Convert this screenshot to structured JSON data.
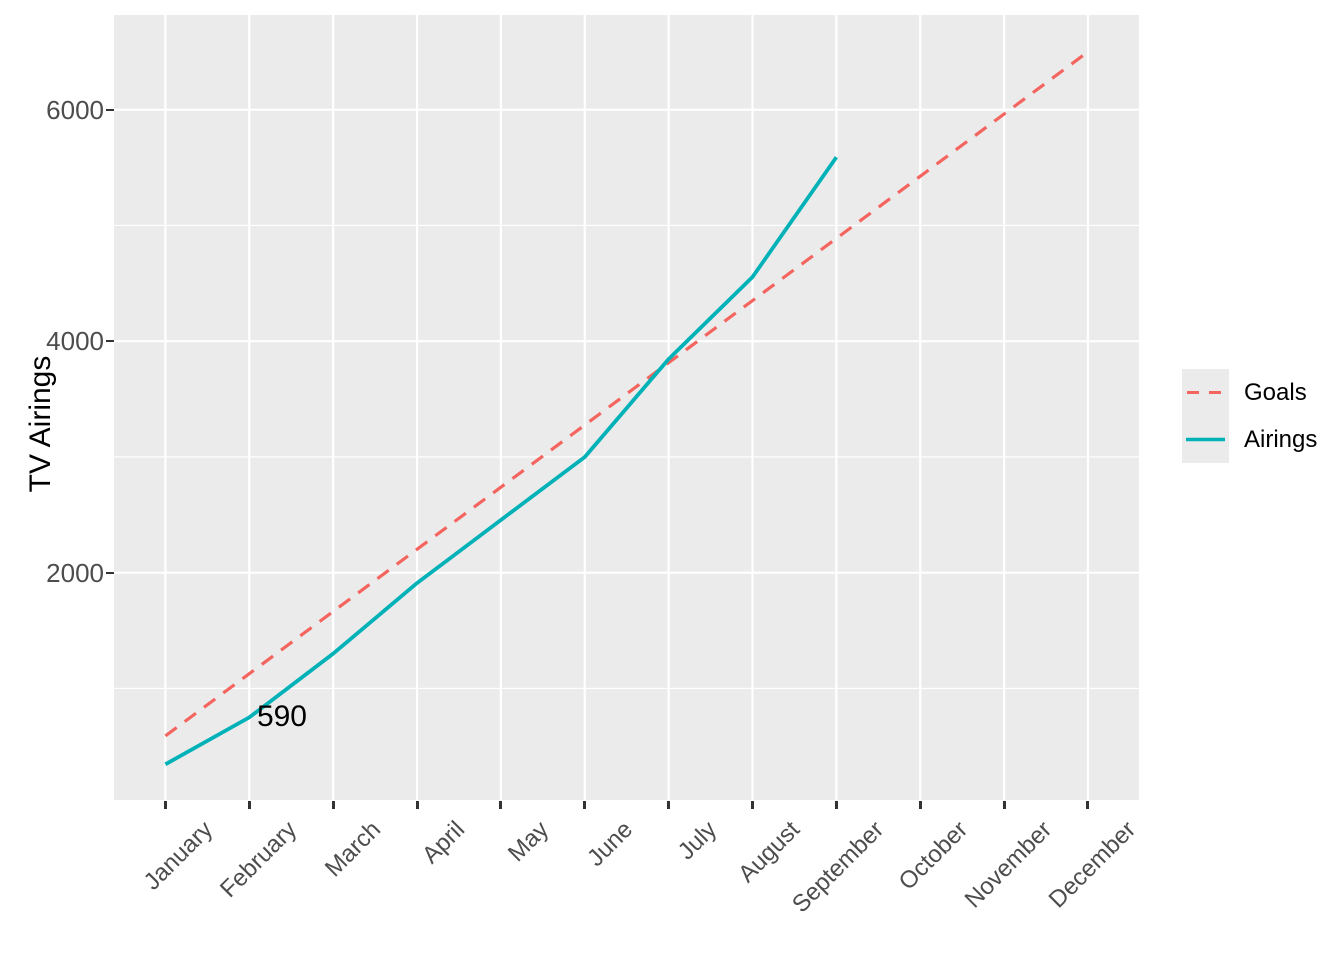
{
  "figure": {
    "background": "#FFFFFF",
    "panel_background": "#EBEBEB",
    "gridline_color": "#FFFFFF",
    "axis_text_color": "#4D4D4D",
    "tick_mark_color": "#333333",
    "title_text_color": "#000000"
  },
  "y_axis": {
    "title": "TV Airings",
    "tick_labels": [
      "2000",
      "4000",
      "6000"
    ],
    "tick_values": [
      2000,
      4000,
      6000
    ],
    "minor_gridline_values": [
      1000,
      3000,
      5000
    ]
  },
  "x_axis": {
    "tick_labels": [
      "January",
      "February",
      "March",
      "April",
      "May",
      "June",
      "July",
      "August",
      "September",
      "October",
      "November",
      "December"
    ]
  },
  "legend": {
    "items": [
      {
        "label": "Goals",
        "line_style": "dashed",
        "color": "#F4655F"
      },
      {
        "label": "Airings",
        "line_style": "solid",
        "color": "#00B2B8"
      }
    ]
  },
  "chart_data": {
    "type": "line",
    "title": "",
    "xlabel": "",
    "ylabel": "TV Airings",
    "categories": [
      "January",
      "February",
      "March",
      "April",
      "May",
      "June",
      "July",
      "August",
      "September",
      "October",
      "November",
      "December"
    ],
    "series": [
      {
        "name": "Goals",
        "style": "dashed",
        "color": "#F4655F",
        "values": [
          590,
          1127,
          1665,
          2202,
          2739,
          3276,
          3814,
          4351,
          4888,
          5425,
          5963,
          6500
        ]
      },
      {
        "name": "Airings",
        "style": "solid",
        "color": "#00B2B8",
        "values": [
          345,
          750,
          1300,
          1910,
          2455,
          3000,
          3845,
          4555,
          5590,
          null,
          null,
          null
        ]
      }
    ],
    "annotations": [
      {
        "text": "590",
        "x_units": 1.39,
        "y_value": 755
      }
    ],
    "ylim": [
      0,
      6830
    ],
    "y_major_gridlines": [
      2000,
      4000,
      6000
    ],
    "y_minor_gridlines": [
      1000,
      3000,
      5000
    ],
    "grid": true,
    "legend_position": "right"
  }
}
